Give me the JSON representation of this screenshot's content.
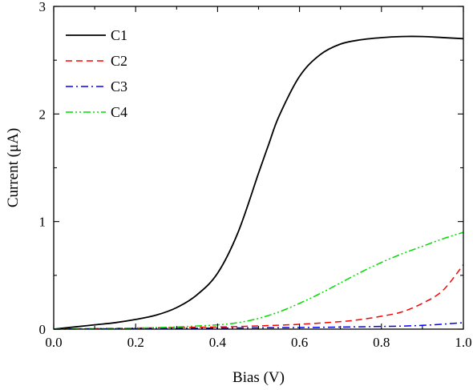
{
  "chart_data": {
    "type": "line",
    "title": "",
    "xlabel": "Bias (V)",
    "ylabel": "Current (μA)",
    "xlim": [
      0.0,
      1.0
    ],
    "ylim": [
      0,
      3
    ],
    "x_ticks": [
      "0.0",
      "0.2",
      "0.4",
      "0.6",
      "0.8",
      "1.0"
    ],
    "y_ticks": [
      "0",
      "1",
      "2",
      "3"
    ],
    "grid": false,
    "legend_position": "top-left",
    "series": [
      {
        "name": "C1",
        "color": "#000000",
        "dash": "solid",
        "x": [
          0.0,
          0.05,
          0.1,
          0.15,
          0.2,
          0.25,
          0.3,
          0.35,
          0.4,
          0.45,
          0.5,
          0.525,
          0.55,
          0.6,
          0.65,
          0.7,
          0.75,
          0.8,
          0.85,
          0.9,
          0.95,
          1.0
        ],
        "y": [
          0.0,
          0.02,
          0.04,
          0.06,
          0.09,
          0.13,
          0.2,
          0.32,
          0.52,
          0.9,
          1.45,
          1.72,
          1.98,
          2.35,
          2.55,
          2.65,
          2.69,
          2.71,
          2.72,
          2.72,
          2.71,
          2.7
        ]
      },
      {
        "name": "C2",
        "color": "#ff0000",
        "dash": "dashed",
        "x": [
          0.0,
          0.1,
          0.2,
          0.3,
          0.4,
          0.5,
          0.6,
          0.7,
          0.75,
          0.8,
          0.85,
          0.9,
          0.95,
          1.0
        ],
        "y": [
          0.0,
          0.005,
          0.01,
          0.015,
          0.02,
          0.03,
          0.045,
          0.07,
          0.09,
          0.12,
          0.16,
          0.24,
          0.36,
          0.6
        ]
      },
      {
        "name": "C3",
        "color": "#0000ff",
        "dash": "dashdot",
        "x": [
          0.0,
          0.2,
          0.4,
          0.6,
          0.8,
          0.9,
          1.0
        ],
        "y": [
          0.0,
          0.005,
          0.01,
          0.015,
          0.025,
          0.035,
          0.06
        ]
      },
      {
        "name": "C4",
        "color": "#00dd00",
        "dash": "dashdotdot",
        "x": [
          0.0,
          0.1,
          0.2,
          0.3,
          0.4,
          0.45,
          0.5,
          0.55,
          0.6,
          0.65,
          0.7,
          0.75,
          0.8,
          0.85,
          0.9,
          0.95,
          1.0
        ],
        "y": [
          0.0,
          0.005,
          0.01,
          0.02,
          0.04,
          0.06,
          0.1,
          0.16,
          0.24,
          0.33,
          0.43,
          0.53,
          0.62,
          0.7,
          0.77,
          0.84,
          0.9
        ]
      }
    ]
  }
}
